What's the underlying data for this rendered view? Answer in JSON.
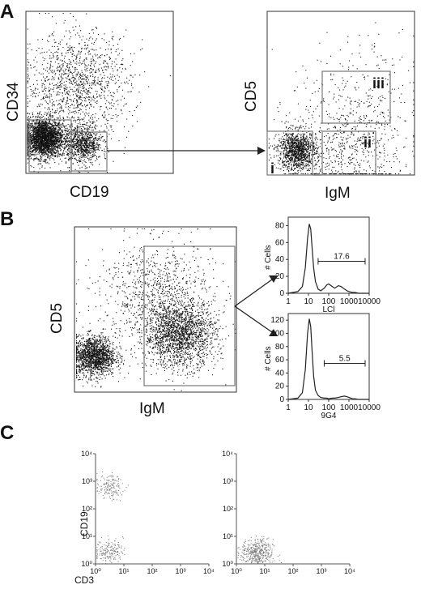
{
  "chart_data": [
    {
      "panel": "A",
      "type": "scatter",
      "xlabel": "CD19",
      "ylabel": "CD34",
      "ylim": [
        0,
        1
      ],
      "clusters": [
        {
          "cx": 0.12,
          "cy": 0.22,
          "density": "high",
          "n": 2600
        },
        {
          "cx": 0.38,
          "cy": 0.18,
          "density": "high",
          "n": 900
        },
        {
          "cx": 0.35,
          "cy": 0.55,
          "density": "sparse",
          "n": 1300
        }
      ]
    },
    {
      "panel": "A",
      "type": "scatter",
      "xlabel": "IgM",
      "ylabel": "CD5",
      "gates": [
        "i",
        "ii",
        "iii"
      ],
      "clusters": [
        {
          "cx": 0.2,
          "cy": 0.15,
          "density": "high",
          "n": 1200
        },
        {
          "cx": 0.55,
          "cy": 0.15,
          "density": "sparse",
          "n": 600
        },
        {
          "cx": 0.6,
          "cy": 0.45,
          "density": "very-sparse",
          "n": 250
        }
      ]
    },
    {
      "panel": "B",
      "type": "scatter",
      "xlabel": "IgM",
      "ylabel": "CD5",
      "clusters": [
        {
          "cx": 0.12,
          "cy": 0.22,
          "density": "high",
          "n": 1600
        },
        {
          "cx": 0.65,
          "cy": 0.35,
          "density": "medium",
          "n": 1900
        },
        {
          "cx": 0.5,
          "cy": 0.6,
          "density": "sparse",
          "n": 900
        }
      ]
    },
    {
      "panel": "B",
      "type": "line",
      "xlabel": "LCl",
      "ylabel": "# Cells",
      "x_ticks": [
        "1",
        "10",
        "100",
        "1000",
        "10000"
      ],
      "y_ticks": [
        "0",
        "20",
        "40",
        "60",
        "80"
      ],
      "xlim": [
        1,
        10000
      ],
      "ylim": [
        0,
        90
      ],
      "gate_label": "17.6",
      "gate_range": [
        30,
        10000
      ],
      "x": [
        1,
        3,
        5,
        7,
        9,
        11,
        13,
        15,
        18,
        22,
        30,
        40,
        60,
        80,
        100,
        150,
        200,
        300,
        400,
        600,
        800,
        1000,
        1500,
        2000,
        3000,
        5000,
        10000
      ],
      "y": [
        0,
        2,
        8,
        30,
        65,
        82,
        76,
        55,
        30,
        14,
        5,
        3,
        6,
        10,
        11,
        8,
        6,
        9,
        8,
        5,
        3,
        2,
        1,
        1,
        0,
        0,
        0
      ]
    },
    {
      "panel": "B",
      "type": "line",
      "xlabel": "9G4",
      "ylabel": "# Cells",
      "x_ticks": [
        "1",
        "10",
        "100",
        "1000",
        "10000"
      ],
      "y_ticks": [
        "0",
        "20",
        "40",
        "60",
        "80",
        "100",
        "120"
      ],
      "xlim": [
        1,
        10000
      ],
      "ylim": [
        0,
        130
      ],
      "gate_label": "5.5",
      "gate_range": [
        60,
        10000
      ],
      "x": [
        1,
        3,
        5,
        7,
        9,
        11,
        13,
        15,
        18,
        22,
        30,
        40,
        60,
        80,
        100,
        150,
        200,
        300,
        400,
        600,
        800,
        1000,
        1500,
        2000,
        3000,
        5000,
        10000
      ],
      "y": [
        0,
        2,
        10,
        45,
        100,
        122,
        110,
        75,
        35,
        14,
        6,
        3,
        2,
        2,
        1,
        2,
        2,
        3,
        4,
        5,
        4,
        3,
        1,
        1,
        0,
        0,
        0
      ]
    },
    {
      "panel": "C",
      "type": "scatter",
      "xlabel": "CD3",
      "ylabel": "CD19",
      "x_ticks": [
        "10⁰",
        "10¹",
        "10²",
        "10³",
        "10⁴"
      ],
      "y_ticks": [
        "10⁰",
        "10¹",
        "10²",
        "10³",
        "10⁴"
      ],
      "xlim": [
        1,
        10000
      ],
      "ylim": [
        1,
        10000
      ],
      "clusters": [
        {
          "cx": 0.12,
          "cy": 0.7,
          "density": "sparse",
          "n": 160
        },
        {
          "cx": 0.12,
          "cy": 0.12,
          "density": "sparse",
          "n": 180
        }
      ]
    },
    {
      "panel": "C",
      "type": "scatter",
      "x_ticks": [
        "10⁰",
        "10¹",
        "10²",
        "10³",
        "10⁴"
      ],
      "y_ticks": [
        "10⁰",
        "10¹",
        "10²",
        "10³",
        "10⁴"
      ],
      "xlim": [
        1,
        10000
      ],
      "ylim": [
        1,
        10000
      ],
      "clusters": [
        {
          "cx": 0.18,
          "cy": 0.1,
          "density": "medium",
          "n": 450
        }
      ]
    }
  ],
  "labels": {
    "panelA": "A",
    "panelB": "B",
    "panelC": "C",
    "gate_i": "i",
    "gate_ii": "ii",
    "gate_iii": "iii"
  }
}
